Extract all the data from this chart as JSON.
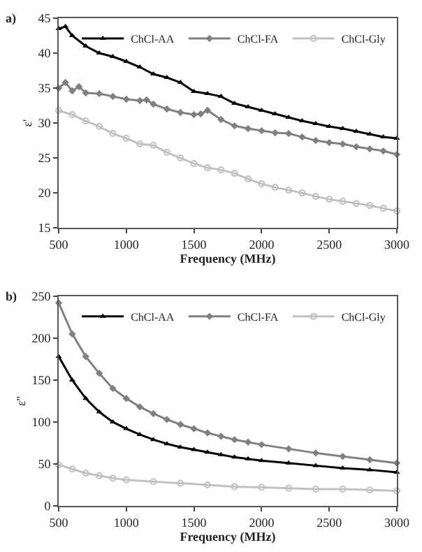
{
  "chart_data": [
    {
      "type": "line",
      "title": "a)",
      "xlabel": "Frequency (MHz)",
      "ylabel": "ε'",
      "xlim": [
        500,
        3000
      ],
      "xticks": [
        500,
        1000,
        1500,
        2000,
        2500,
        3000
      ],
      "ylim": [
        15,
        45
      ],
      "yticks": [
        15,
        20,
        25,
        30,
        35,
        40,
        45
      ],
      "legend": "top right",
      "line_style": "solid",
      "series": [
        {
          "name": "ChCl-AA",
          "color": "#000000",
          "marker": "triangle",
          "x": [
            500,
            550,
            600,
            700,
            800,
            900,
            1000,
            1100,
            1200,
            1300,
            1400,
            1500,
            1600,
            1700,
            1800,
            1900,
            2000,
            2100,
            2200,
            2300,
            2400,
            2500,
            2600,
            2700,
            2800,
            2900,
            3000
          ],
          "values": [
            43.5,
            43.8,
            42.5,
            41,
            40,
            39.5,
            38.8,
            38,
            37,
            36.5,
            35.8,
            34.5,
            34.2,
            33.8,
            32.8,
            32.3,
            31.8,
            31.3,
            30.8,
            30.3,
            29.9,
            29.5,
            29.2,
            28.8,
            28.4,
            28.0,
            27.8
          ]
        },
        {
          "name": "ChCl-FA",
          "color": "#808080",
          "marker": "diamond",
          "x": [
            500,
            550,
            600,
            650,
            700,
            800,
            900,
            1000,
            1100,
            1150,
            1200,
            1300,
            1400,
            1500,
            1550,
            1600,
            1700,
            1800,
            1900,
            2000,
            2100,
            2200,
            2300,
            2400,
            2500,
            2600,
            2700,
            2800,
            2900,
            3000
          ],
          "values": [
            35,
            35.8,
            34.6,
            35.2,
            34.3,
            34.2,
            33.8,
            33.4,
            33.2,
            33.3,
            32.7,
            32.0,
            31.5,
            31.2,
            31.3,
            31.8,
            30.5,
            29.6,
            29.2,
            28.9,
            28.6,
            28.5,
            28.0,
            27.5,
            27.2,
            27.0,
            26.6,
            26.3,
            26.0,
            25.5
          ]
        },
        {
          "name": "ChCl-Gly",
          "color": "#c0c0c0",
          "marker": "circle",
          "x": [
            500,
            600,
            700,
            800,
            900,
            1000,
            1100,
            1200,
            1300,
            1400,
            1500,
            1600,
            1700,
            1800,
            1900,
            2000,
            2100,
            2200,
            2300,
            2400,
            2500,
            2600,
            2700,
            2800,
            2900,
            3000
          ],
          "values": [
            31.8,
            31.2,
            30.3,
            29.5,
            28.5,
            27.8,
            27.0,
            26.8,
            25.8,
            25.0,
            24.2,
            23.6,
            23.3,
            22.8,
            22.0,
            21.3,
            20.8,
            20.4,
            20.0,
            19.5,
            19.1,
            18.8,
            18.5,
            18.2,
            17.8,
            17.4
          ]
        }
      ]
    },
    {
      "type": "line",
      "title": "b)",
      "xlabel": "Frequency (MHz)",
      "ylabel": "ε''",
      "xlim": [
        500,
        3000
      ],
      "xticks": [
        500,
        1000,
        1500,
        2000,
        2500,
        3000
      ],
      "ylim": [
        0,
        250
      ],
      "yticks": [
        0,
        50,
        100,
        150,
        200,
        250
      ],
      "legend": "top right",
      "line_style": "solid",
      "series": [
        {
          "name": "ChCl-AA",
          "color": "#000000",
          "marker": "triangle",
          "x": [
            500,
            600,
            700,
            800,
            900,
            1000,
            1100,
            1200,
            1300,
            1400,
            1500,
            1600,
            1700,
            1800,
            1900,
            2000,
            2200,
            2400,
            2600,
            2800,
            3000
          ],
          "values": [
            178,
            150,
            128,
            112,
            100,
            92,
            85,
            79,
            74,
            70,
            67,
            64,
            61,
            58,
            56,
            54,
            51,
            48,
            45,
            43,
            40
          ]
        },
        {
          "name": "ChCl-FA",
          "color": "#808080",
          "marker": "diamond",
          "x": [
            500,
            600,
            700,
            800,
            900,
            1000,
            1100,
            1200,
            1300,
            1400,
            1500,
            1600,
            1700,
            1800,
            1900,
            2000,
            2200,
            2400,
            2600,
            2800,
            3000
          ],
          "values": [
            242,
            205,
            178,
            158,
            140,
            128,
            118,
            110,
            103,
            97,
            92,
            87,
            83,
            79,
            76,
            73,
            68,
            63,
            59,
            55,
            51
          ]
        },
        {
          "name": "ChCl-Gly",
          "color": "#c0c0c0",
          "marker": "circle",
          "x": [
            500,
            600,
            700,
            800,
            900,
            1000,
            1200,
            1400,
            1600,
            1800,
            2000,
            2200,
            2400,
            2600,
            2800,
            3000
          ],
          "values": [
            49,
            44,
            39,
            36,
            33,
            31,
            29,
            27,
            25,
            23,
            22,
            21,
            20,
            20,
            19,
            18
          ]
        }
      ]
    }
  ]
}
